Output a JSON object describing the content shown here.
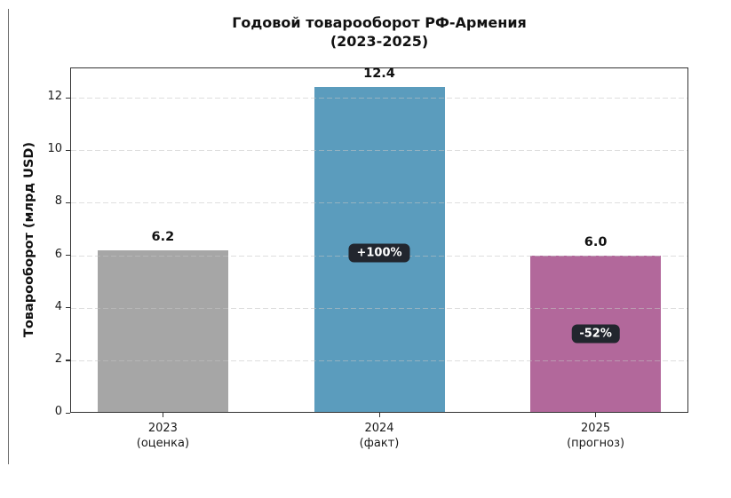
{
  "chart_data": {
    "type": "bar",
    "title": "Годовой товарооборот РФ-Армения",
    "subtitle": "(2023-2025)",
    "ylabel": "Товарооборот (млрд USD)",
    "xlabel": "",
    "categories": [
      "2023",
      "2024",
      "2025"
    ],
    "category_sublabels": [
      "(оценка)",
      "(факт)",
      "(прогноз)"
    ],
    "values": [
      6.2,
      12.4,
      6.0
    ],
    "value_labels": [
      "6.2",
      "12.4",
      "6.0"
    ],
    "bar_colors": [
      "#a6a6a6",
      "#5b9cbd",
      "#b2689b"
    ],
    "annotations": [
      null,
      {
        "text": "+100%",
        "y": 6.1,
        "bg": "#22262e",
        "fg": "#ffffff"
      },
      {
        "text": "-52%",
        "y": 3.0,
        "bg": "#22262e",
        "fg": "#ffffff"
      }
    ],
    "yticks": [
      0,
      2,
      4,
      6,
      8,
      10,
      12
    ],
    "ylim": [
      0,
      13.15
    ],
    "grid": "horizontal-dashed",
    "grid_color": "#dcdcdc",
    "spine_color": "#333333",
    "legend": null
  }
}
